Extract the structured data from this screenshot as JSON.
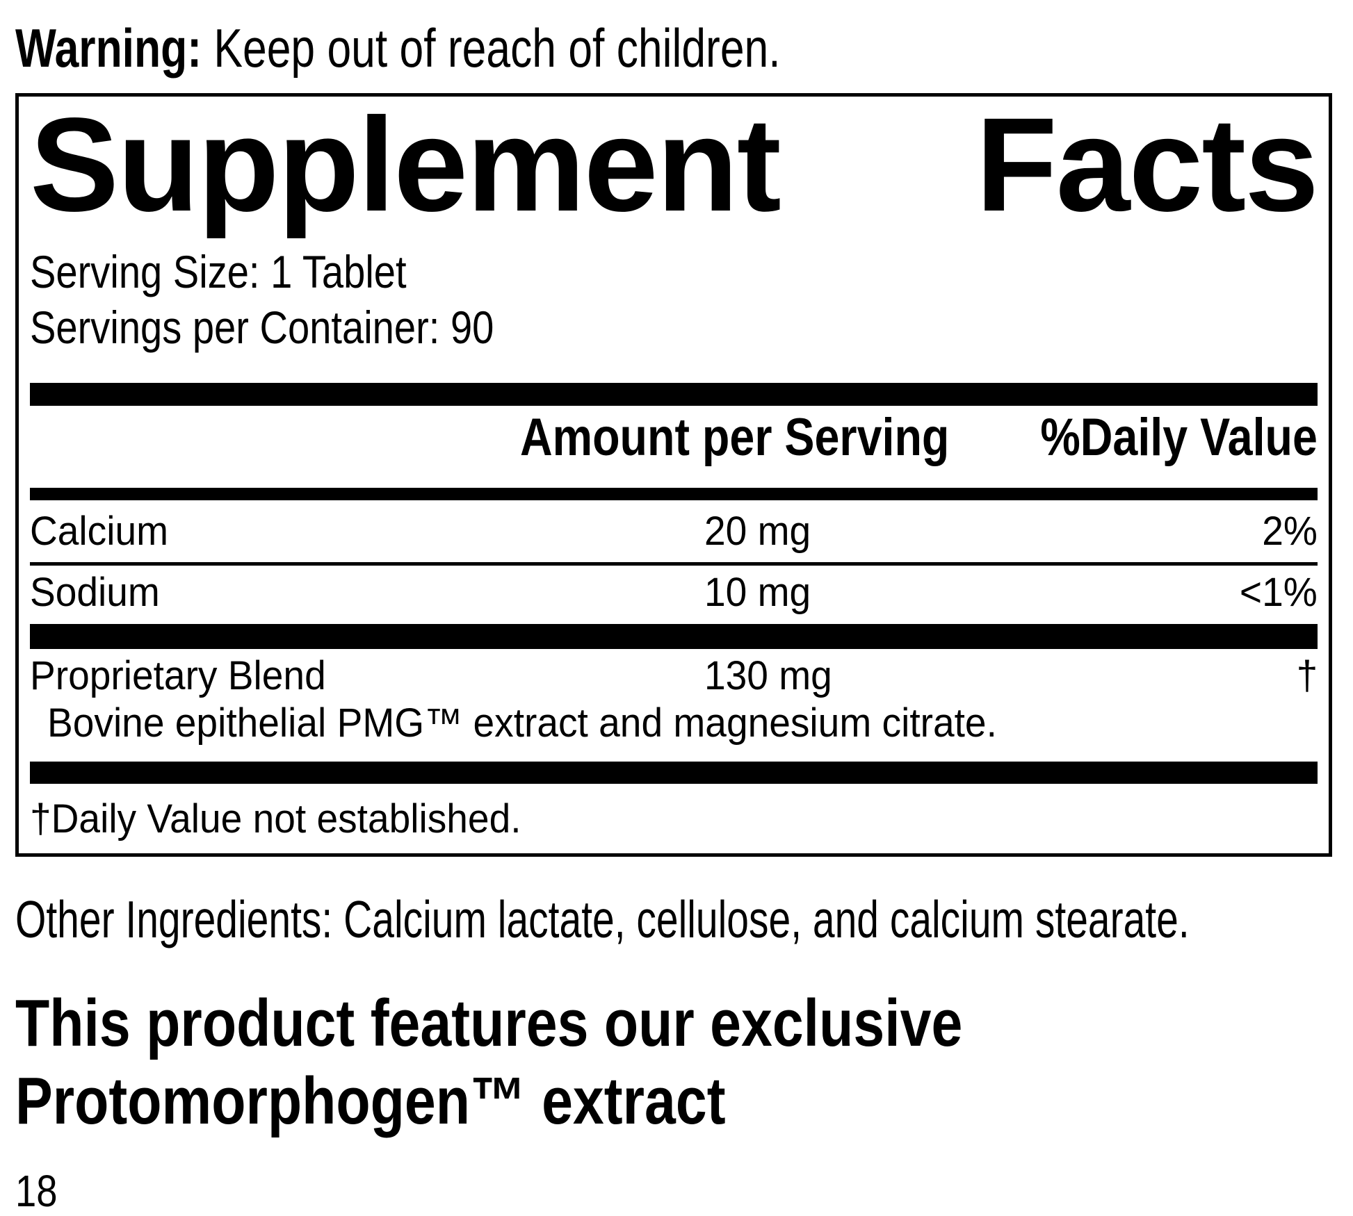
{
  "colors": {
    "text": "#000000",
    "background": "#ffffff"
  },
  "warning": {
    "label": "Warning:",
    "text": " Keep out of reach of children."
  },
  "supplement_facts": {
    "title_words": [
      "Supplement",
      "Facts"
    ],
    "serving_size": "Serving Size: 1 Tablet",
    "servings_per_container": "Servings per Container: 90",
    "columns": {
      "amount": "Amount per Serving",
      "daily_value": "%Daily Value"
    },
    "rows": [
      {
        "name": "Calcium",
        "amount": "20 mg",
        "daily_value": "2%"
      },
      {
        "name": "Sodium",
        "amount": "10 mg",
        "daily_value": "<1%"
      },
      {
        "name": "Proprietary Blend",
        "amount": "130 mg",
        "daily_value": "†",
        "description": "Bovine epithelial PMG™ extract and magnesium citrate."
      }
    ],
    "footnote": "†Daily Value not established."
  },
  "other_ingredients": "Other Ingredients: Calcium lactate, cellulose, and calcium stearate.",
  "feature_note": {
    "line1": "This product features our exclusive",
    "line2": "Protomorphogen™ extract"
  },
  "page_number": "18"
}
